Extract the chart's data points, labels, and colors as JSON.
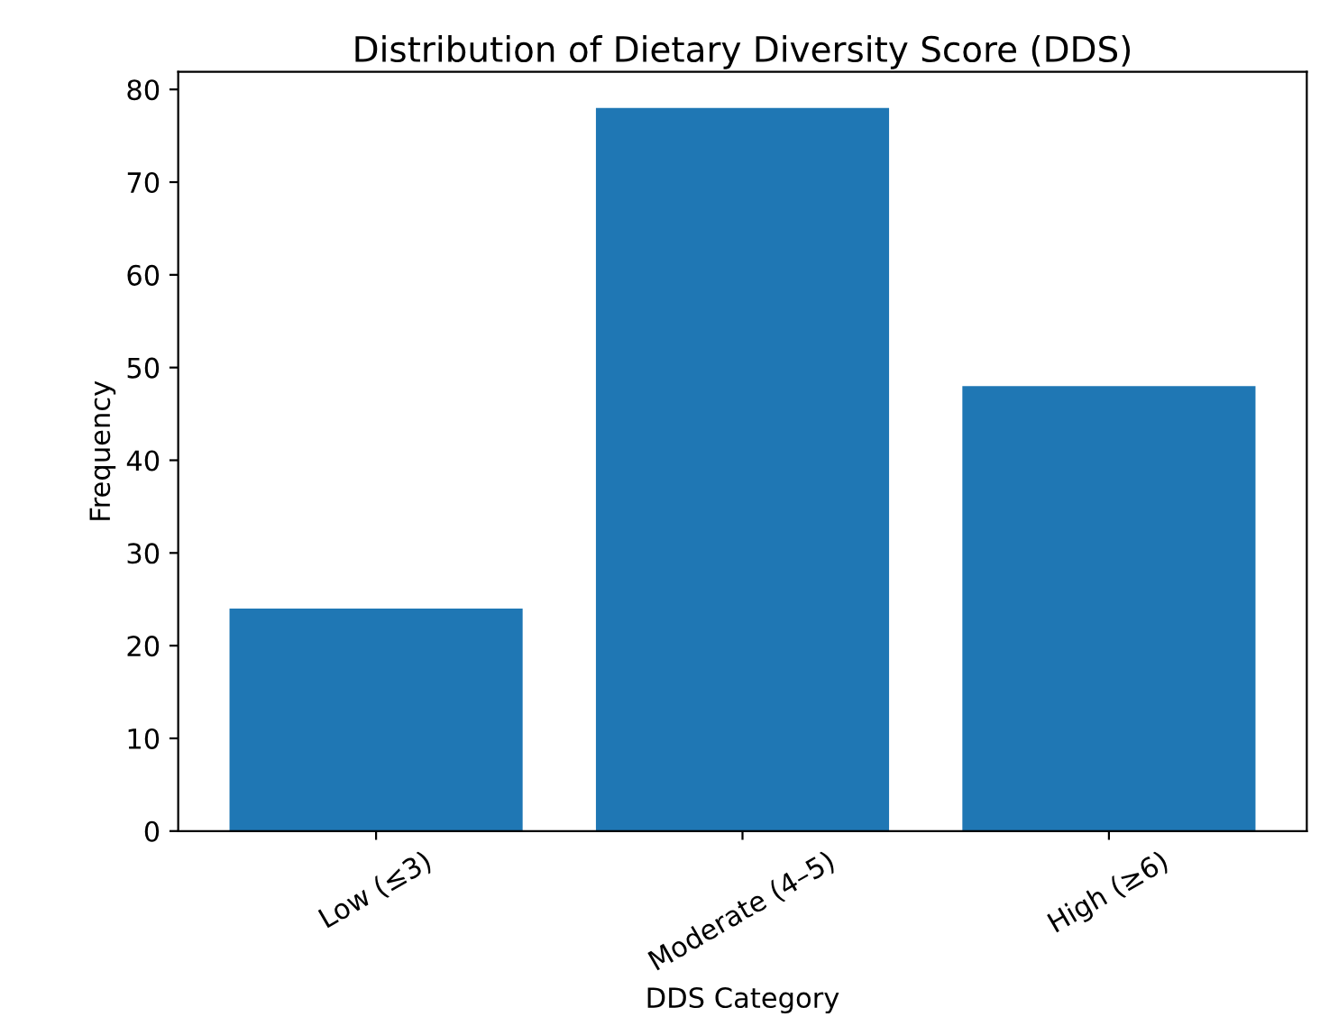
{
  "chart_data": {
    "type": "bar",
    "title": "Distribution of Dietary Diversity Score (DDS)",
    "xlabel": "DDS Category",
    "ylabel": "Frequency",
    "categories": [
      "Low (≤3)",
      "Moderate (4–5)",
      "High (≥6)"
    ],
    "values": [
      24,
      78,
      48
    ],
    "color": "#1f77b4",
    "ylim": [
      0,
      81.9
    ],
    "yticks": [
      0,
      10,
      20,
      30,
      40,
      50,
      60,
      70,
      80
    ],
    "grid": false,
    "legend": false
  }
}
